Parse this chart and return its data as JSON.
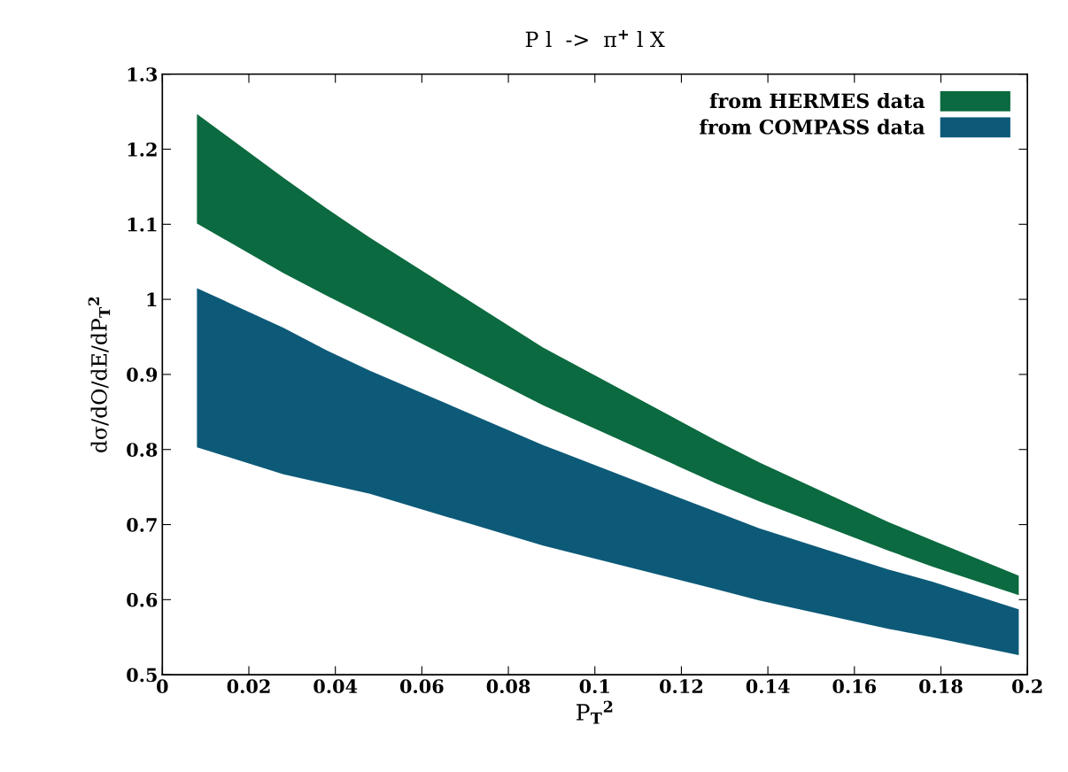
{
  "chart_data": {
    "type": "area",
    "title": "P l  ->  π$^{+}$ l X",
    "xlabel": "P$_{T}$$^{2}$",
    "ylabel": "dσ/dO/dE/dP$_{T}$$^{2}$",
    "x": [
      0.008,
      0.028,
      0.038,
      0.048,
      0.088,
      0.128,
      0.138,
      0.168,
      0.178,
      0.198
    ],
    "series": [
      {
        "name": "from HERMES data",
        "color": "#0b6a3f",
        "values": [
          null,
          null,
          null,
          null,
          null,
          null,
          null,
          null,
          null,
          null
        ],
        "lower": [
          1.101,
          1.035,
          1.005,
          0.976,
          0.859,
          0.755,
          0.731,
          0.665,
          0.644,
          0.606
        ],
        "upper": [
          1.247,
          1.162,
          1.121,
          1.082,
          0.936,
          0.812,
          0.783,
          0.703,
          0.679,
          0.632
        ]
      },
      {
        "name": "from COMPASS data",
        "color": "#0d5a78",
        "values": [
          null,
          null,
          null,
          null,
          null,
          null,
          null,
          null,
          null,
          null
        ],
        "lower": [
          0.803,
          0.767,
          0.754,
          0.741,
          0.672,
          0.614,
          0.599,
          0.561,
          0.55,
          0.526
        ],
        "upper": [
          1.015,
          0.962,
          0.932,
          0.905,
          0.806,
          0.717,
          0.695,
          0.64,
          0.624,
          0.587
        ]
      }
    ],
    "xlim": [
      0,
      0.2
    ],
    "xticks": [
      0,
      0.02,
      0.04,
      0.06,
      0.08,
      0.1,
      0.12,
      0.14,
      0.16,
      0.18,
      0.2
    ],
    "ylim": [
      0.5,
      1.3
    ],
    "yticks": [
      0.5,
      0.6,
      0.7,
      0.8,
      0.9,
      1,
      1.1,
      1.2,
      1.3
    ],
    "grid": false,
    "legend": "top right"
  }
}
